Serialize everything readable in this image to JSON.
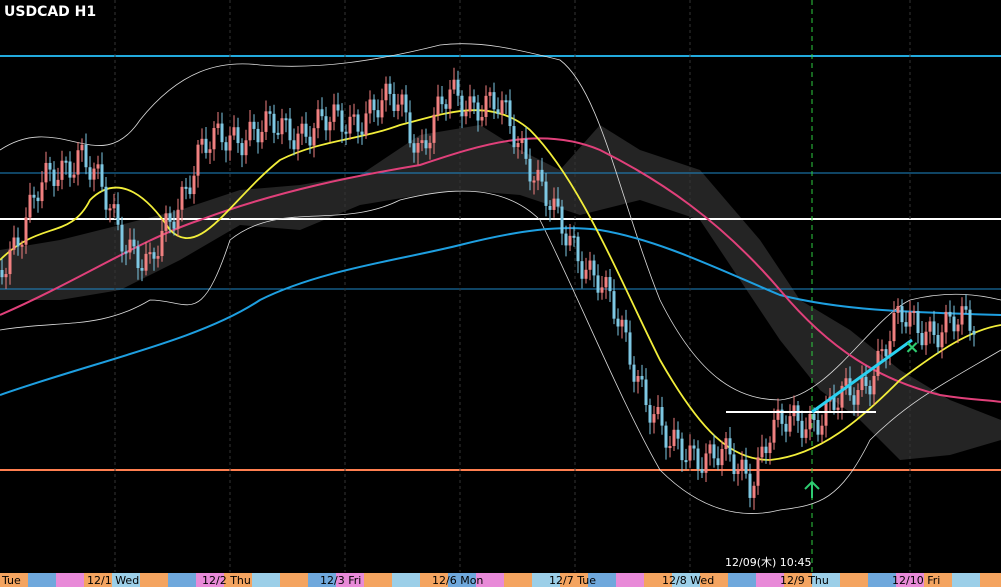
{
  "header": {
    "title": "USDCAD H1"
  },
  "cursor": {
    "time_label": "12/09(木) 10:45"
  },
  "time_axis": {
    "labels": [
      "Tue",
      "12/1 Wed",
      "12/2 Thu",
      "12/3 Fri",
      "12/6 Mon",
      "12/7 Tue",
      "12/8 Wed",
      "12/9 Thu",
      "12/10 Fri"
    ]
  }
}
